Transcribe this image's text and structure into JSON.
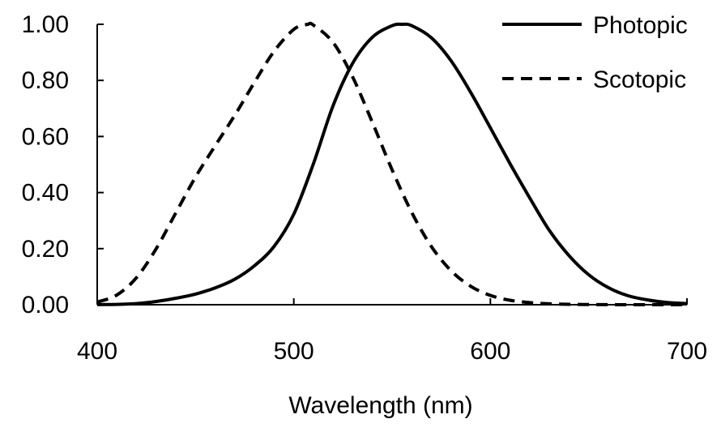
{
  "chart_data": {
    "type": "line",
    "title": "",
    "xlabel": "Wavelength (nm)",
    "ylabel": "",
    "xlim": [
      400,
      700
    ],
    "ylim": [
      0,
      1.0
    ],
    "x_ticks": [
      "400",
      "500",
      "600",
      "700"
    ],
    "y_ticks": [
      "0.00",
      "0.20",
      "0.40",
      "0.60",
      "0.80",
      "1.00"
    ],
    "grid": false,
    "legend_position": "top-right",
    "series": [
      {
        "name": "Photopic",
        "style": "solid",
        "color": "#000000",
        "x": [
          400,
          410,
          420,
          430,
          440,
          450,
          460,
          470,
          480,
          490,
          500,
          510,
          520,
          530,
          540,
          550,
          555,
          560,
          570,
          580,
          590,
          600,
          610,
          620,
          630,
          640,
          650,
          660,
          670,
          680,
          690,
          700
        ],
        "y": [
          0.0004,
          0.0012,
          0.004,
          0.0116,
          0.023,
          0.038,
          0.06,
          0.091,
          0.139,
          0.208,
          0.323,
          0.503,
          0.71,
          0.862,
          0.954,
          0.995,
          1.0,
          0.995,
          0.952,
          0.87,
          0.757,
          0.631,
          0.503,
          0.381,
          0.265,
          0.175,
          0.107,
          0.061,
          0.032,
          0.017,
          0.0082,
          0.0041
        ]
      },
      {
        "name": "Scotopic",
        "style": "dashed",
        "color": "#000000",
        "x": [
          400,
          410,
          420,
          430,
          440,
          450,
          460,
          470,
          480,
          490,
          500,
          507,
          510,
          520,
          530,
          540,
          550,
          560,
          570,
          580,
          590,
          600,
          610,
          620,
          630,
          640,
          650,
          660,
          670,
          680,
          690,
          700
        ],
        "y": [
          0.0093,
          0.0348,
          0.0966,
          0.1998,
          0.328,
          0.455,
          0.567,
          0.676,
          0.793,
          0.904,
          0.982,
          1.0,
          0.997,
          0.935,
          0.811,
          0.65,
          0.481,
          0.3288,
          0.2076,
          0.1212,
          0.0655,
          0.0332,
          0.0159,
          0.0074,
          0.0033,
          0.0015,
          0.0007,
          0.0003,
          0.0001,
          0.0001,
          0.0,
          0.0
        ]
      }
    ]
  }
}
